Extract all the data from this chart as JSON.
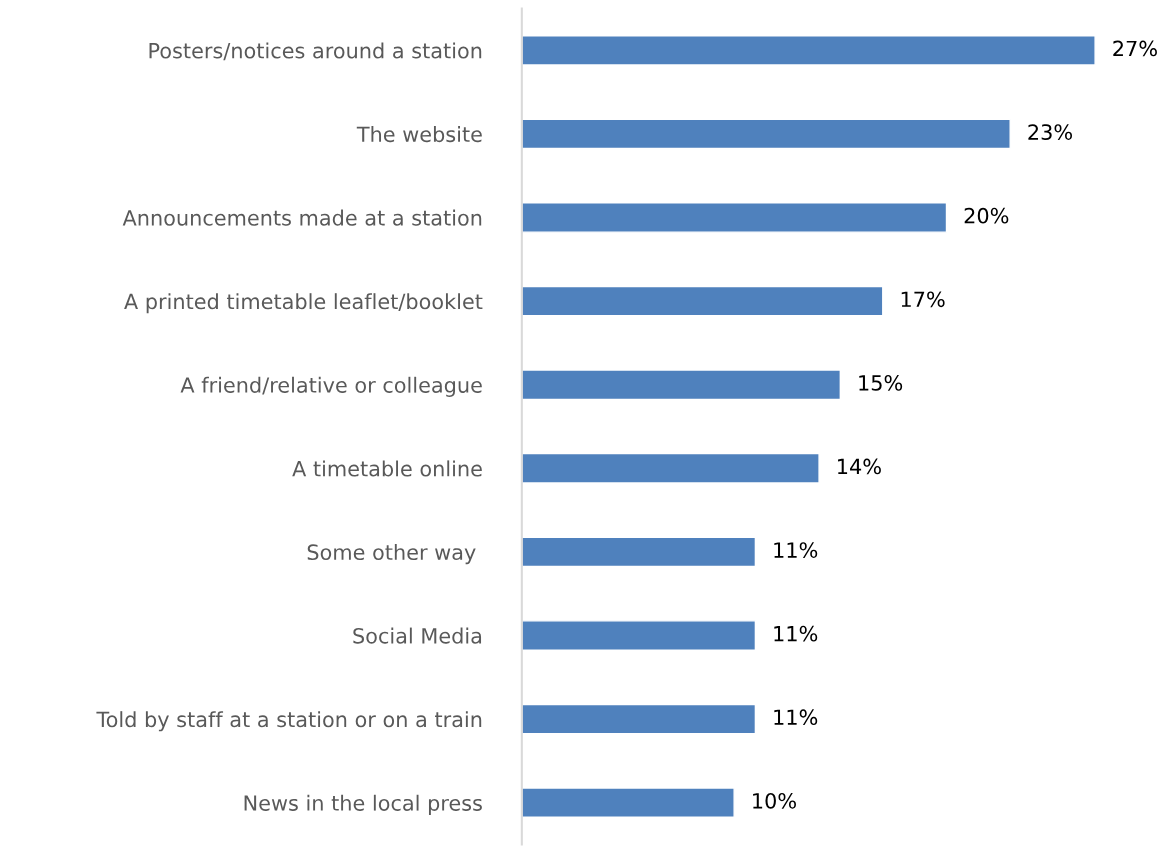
{
  "chart_data": {
    "type": "bar",
    "orientation": "horizontal",
    "categories": [
      "Posters/notices around a station",
      "The website",
      "Announcements made at a station",
      "A printed timetable leaflet/booklet",
      "A friend/relative or colleague",
      "A timetable online",
      "Some other way ",
      "Social Media",
      "Told by staff at a station or on a train",
      "News in the local press"
    ],
    "values": [
      27,
      23,
      20,
      17,
      15,
      14,
      11,
      11,
      11,
      10
    ],
    "value_labels": [
      "27%",
      "23%",
      "20%",
      "17%",
      "15%",
      "14%",
      "11%",
      "11%",
      "11%",
      "10%"
    ],
    "color": "#4f81bd",
    "tick_labels": "y",
    "grid": false,
    "legend": false
  }
}
